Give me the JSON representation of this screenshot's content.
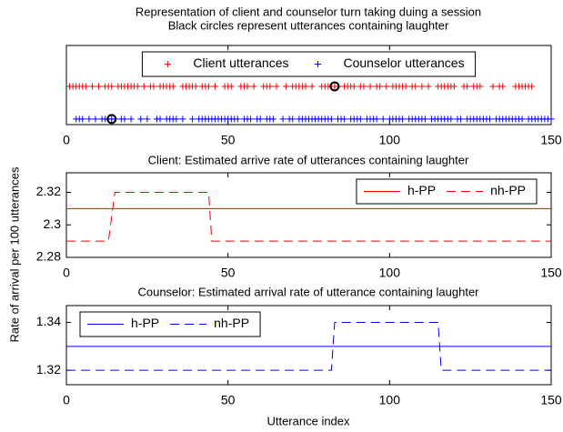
{
  "ylabel": "Rate of arrival per 100 utterances",
  "chart_data": [
    {
      "type": "scatter",
      "title": "Representation of client and counselor turn taking duing a session",
      "subtitle": "Black circles represent utterances containing laughter",
      "xlim": [
        0,
        150
      ],
      "xticks": [
        0,
        50,
        100,
        150
      ],
      "ylim": [
        0.83,
        3.25
      ],
      "legend": "north",
      "series": [
        {
          "name": "Client utterances",
          "color": "#ff0000",
          "marker": "plus",
          "x": [
            1,
            2,
            3,
            4,
            5,
            6,
            8,
            10,
            12,
            13,
            14,
            16,
            17,
            18,
            19,
            20,
            21,
            22,
            24,
            26,
            27,
            29,
            30,
            31,
            32,
            33,
            36,
            37,
            38,
            39,
            40,
            42,
            43,
            44,
            46,
            49,
            50,
            51,
            54,
            55,
            56,
            58,
            61,
            62,
            63,
            65,
            68,
            70,
            71,
            72,
            73,
            74,
            76,
            79,
            80,
            81,
            82,
            83,
            84,
            86,
            87,
            88,
            89,
            91,
            92,
            94,
            96,
            97,
            99,
            101,
            102,
            103,
            104,
            105,
            107,
            108,
            110,
            112,
            115,
            116,
            117,
            118,
            119,
            120,
            123,
            124,
            126,
            127,
            128,
            132,
            134,
            135,
            139,
            140,
            141,
            142,
            143,
            144
          ],
          "values": [
            2,
            2,
            2,
            2,
            2,
            2,
            2,
            2,
            2,
            2,
            2,
            2,
            2,
            2,
            2,
            2,
            2,
            2,
            2,
            2,
            2,
            2,
            2,
            2,
            2,
            2,
            2,
            2,
            2,
            2,
            2,
            2,
            2,
            2,
            2,
            2,
            2,
            2,
            2,
            2,
            2,
            2,
            2,
            2,
            2,
            2,
            2,
            2,
            2,
            2,
            2,
            2,
            2,
            2,
            2,
            2,
            2,
            2,
            2,
            2,
            2,
            2,
            2,
            2,
            2,
            2,
            2,
            2,
            2,
            2,
            2,
            2,
            2,
            2,
            2,
            2,
            2,
            2,
            2,
            2,
            2,
            2,
            2,
            2,
            2,
            2,
            2,
            2,
            2,
            2,
            2,
            2,
            2,
            2,
            2,
            2,
            2,
            2
          ]
        },
        {
          "name": "Counselor utterances",
          "color": "#0000ff",
          "marker": "plus",
          "x": [
            3,
            4,
            5,
            7,
            9,
            11,
            12,
            13,
            14,
            15,
            17,
            18,
            20,
            23,
            25,
            28,
            29,
            31,
            32,
            33,
            34,
            36,
            39,
            41,
            42,
            43,
            44,
            45,
            46,
            47,
            48,
            49,
            50,
            51,
            52,
            53,
            55,
            56,
            57,
            59,
            60,
            62,
            63,
            64,
            67,
            69,
            70,
            72,
            73,
            74,
            75,
            76,
            77,
            78,
            79,
            80,
            81,
            82,
            84,
            85,
            86,
            88,
            89,
            90,
            91,
            93,
            94,
            95,
            96,
            98,
            100,
            101,
            102,
            103,
            104,
            106,
            107,
            108,
            109,
            110,
            111,
            113,
            114,
            115,
            116,
            117,
            118,
            119,
            121,
            122,
            124,
            125,
            126,
            127,
            128,
            129,
            130,
            131,
            133,
            134,
            135,
            136,
            137,
            138,
            139,
            140,
            141,
            143,
            144,
            145,
            146,
            147,
            148,
            149,
            150
          ],
          "values": [
            1,
            1,
            1,
            1,
            1,
            1,
            1,
            1,
            1,
            1,
            1,
            1,
            1,
            1,
            1,
            1,
            1,
            1,
            1,
            1,
            1,
            1,
            1,
            1,
            1,
            1,
            1,
            1,
            1,
            1,
            1,
            1,
            1,
            1,
            1,
            1,
            1,
            1,
            1,
            1,
            1,
            1,
            1,
            1,
            1,
            1,
            1,
            1,
            1,
            1,
            1,
            1,
            1,
            1,
            1,
            1,
            1,
            1,
            1,
            1,
            1,
            1,
            1,
            1,
            1,
            1,
            1,
            1,
            1,
            1,
            1,
            1,
            1,
            1,
            1,
            1,
            1,
            1,
            1,
            1,
            1,
            1,
            1,
            1,
            1,
            1,
            1,
            1,
            1,
            1,
            1,
            1,
            1,
            1,
            1,
            1,
            1,
            1,
            1,
            1,
            1,
            1,
            1,
            1,
            1,
            1,
            1,
            1,
            1,
            1,
            1,
            1,
            1,
            1,
            1
          ]
        },
        {
          "color": "#000000",
          "marker": "circle",
          "x": [
            83,
            14
          ],
          "values": [
            2,
            1
          ]
        }
      ]
    },
    {
      "type": "line",
      "title": "Client: Estimated arrive rate of utterances containing laughter",
      "xlim": [
        0,
        150
      ],
      "xticks": [
        0,
        50,
        100,
        150
      ],
      "ylim": [
        2.28,
        2.332
      ],
      "yticks": [
        2.28,
        2.3,
        2.32
      ],
      "legend": "northeast",
      "series": [
        {
          "name": "h-PP",
          "color": "#ff0000",
          "linestyle": "solid",
          "x": [
            0,
            150
          ],
          "values": [
            2.31,
            2.31
          ]
        },
        {
          "name": "nh-PP",
          "color": "#ff0000",
          "linestyle": "dashed",
          "x": [
            0,
            13,
            15,
            44,
            45,
            150
          ],
          "values": [
            2.29,
            2.29,
            2.32,
            2.32,
            2.29,
            2.29
          ]
        }
      ]
    },
    {
      "type": "line",
      "title": "Counselor: Estimated arrival rate of utterance containing laughter",
      "xlabel": "Utterance index",
      "xlim": [
        0,
        150
      ],
      "xticks": [
        0,
        50,
        100,
        150
      ],
      "ylim": [
        1.314,
        1.347
      ],
      "yticks": [
        1.32,
        1.34
      ],
      "legend": "northwest",
      "series": [
        {
          "name": "h-PP",
          "color": "#0000ff",
          "linestyle": "solid",
          "x": [
            0,
            150
          ],
          "values": [
            1.33,
            1.33
          ]
        },
        {
          "name": "nh-PP",
          "color": "#0000ff",
          "linestyle": "dashed",
          "x": [
            0,
            82,
            83,
            115,
            116,
            150
          ],
          "values": [
            1.32,
            1.32,
            1.34,
            1.34,
            1.32,
            1.32
          ]
        }
      ]
    }
  ]
}
